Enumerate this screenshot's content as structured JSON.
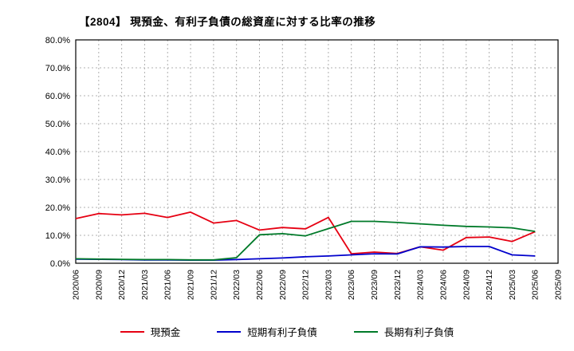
{
  "title": "【2804】 現預金、有利子負債の総資産に対する比率の推移",
  "chart_data": {
    "type": "line",
    "title": "【2804】 現預金、有利子負債の総資産に対する比率の推移",
    "xlabel": "",
    "ylabel": "",
    "ylim": [
      0,
      80
    ],
    "ytick_step": 10,
    "ytick_suffix": "%",
    "grid": true,
    "legend_position": "bottom",
    "categories": [
      "2020/06",
      "2020/09",
      "2020/12",
      "2021/03",
      "2021/06",
      "2021/09",
      "2021/12",
      "2022/03",
      "2022/06",
      "2022/09",
      "2022/12",
      "2023/03",
      "2023/06",
      "2023/09",
      "2023/12",
      "2024/03",
      "2024/06",
      "2024/09",
      "2024/12",
      "2025/03",
      "2025/06",
      "2025/09"
    ],
    "series": [
      {
        "name": "現預金",
        "color": "#e60012",
        "values": [
          16.0,
          17.8,
          17.3,
          17.9,
          16.4,
          18.3,
          14.4,
          15.3,
          11.9,
          12.8,
          12.3,
          16.4,
          3.4,
          4.0,
          3.5,
          5.9,
          4.7,
          9.2,
          9.4,
          7.8,
          11.3,
          null
        ]
      },
      {
        "name": "短期有利子負債",
        "color": "#0000cc",
        "values": [
          1.5,
          1.4,
          1.3,
          1.2,
          1.2,
          1.1,
          1.1,
          1.3,
          1.6,
          1.9,
          2.3,
          2.6,
          3.0,
          3.4,
          3.3,
          5.9,
          5.8,
          6.0,
          6.0,
          3.0,
          2.6,
          null
        ]
      },
      {
        "name": "長期有利子負債",
        "color": "#007a29",
        "values": [
          1.6,
          1.5,
          1.4,
          1.3,
          1.3,
          1.2,
          1.2,
          2.0,
          10.2,
          10.6,
          9.8,
          12.4,
          15.0,
          15.0,
          14.6,
          14.1,
          13.6,
          13.2,
          13.0,
          12.7,
          11.4,
          null
        ]
      }
    ]
  },
  "colors": {
    "grid": "#b0b0b0",
    "axis": "#000000",
    "tick_text": "#000000"
  }
}
